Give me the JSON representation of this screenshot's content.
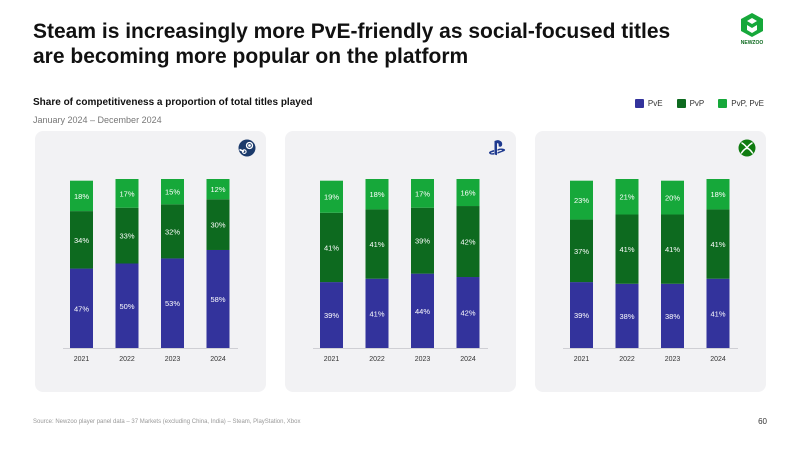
{
  "header": {
    "title": "Steam is increasingly more PvE-friendly as social-focused titles are becoming more popular on the platform",
    "logo_text": "NEWZOO"
  },
  "subtitle": "Share of competitiveness a proportion of total titles played",
  "date_range": "January 2024 – December 2024",
  "legend": [
    {
      "label": "PvE",
      "color": "#33339c"
    },
    {
      "label": "PvP",
      "color": "#0d6a1f"
    },
    {
      "label": "PvP, PvE",
      "color": "#16a83a"
    }
  ],
  "footer": {
    "source": "Source: Newzoo player panel data – 37 Markets (excluding China, India) – Steam, PlayStation, Xbox",
    "page_number": "60"
  },
  "chart_data": [
    {
      "type": "bar",
      "stacked": true,
      "platform": "Steam",
      "icon": "steam-icon",
      "categories": [
        "2021",
        "2022",
        "2023",
        "2024"
      ],
      "series": [
        {
          "name": "PvE",
          "values": [
            47,
            50,
            53,
            58
          ],
          "color": "#33339c"
        },
        {
          "name": "PvP",
          "values": [
            34,
            33,
            32,
            30
          ],
          "color": "#0d6a1f"
        },
        {
          "name": "PvP, PvE",
          "values": [
            18,
            17,
            15,
            12
          ],
          "color": "#16a83a"
        }
      ],
      "ylim": [
        0,
        100
      ]
    },
    {
      "type": "bar",
      "stacked": true,
      "platform": "PlayStation",
      "icon": "playstation-icon",
      "categories": [
        "2021",
        "2022",
        "2023",
        "2024"
      ],
      "series": [
        {
          "name": "PvE",
          "values": [
            39,
            41,
            44,
            42
          ],
          "color": "#33339c"
        },
        {
          "name": "PvP",
          "values": [
            41,
            41,
            39,
            42
          ],
          "color": "#0d6a1f"
        },
        {
          "name": "PvP, PvE",
          "values": [
            19,
            18,
            17,
            16
          ],
          "color": "#16a83a"
        }
      ],
      "ylim": [
        0,
        100
      ]
    },
    {
      "type": "bar",
      "stacked": true,
      "platform": "Xbox",
      "icon": "xbox-icon",
      "categories": [
        "2021",
        "2022",
        "2023",
        "2024"
      ],
      "series": [
        {
          "name": "PvE",
          "values": [
            39,
            38,
            38,
            41
          ],
          "color": "#33339c"
        },
        {
          "name": "PvP",
          "values": [
            37,
            41,
            41,
            41
          ],
          "color": "#0d6a1f"
        },
        {
          "name": "PvP, PvE",
          "values": [
            23,
            21,
            20,
            18
          ],
          "color": "#16a83a"
        }
      ],
      "ylim": [
        0,
        100
      ]
    }
  ]
}
